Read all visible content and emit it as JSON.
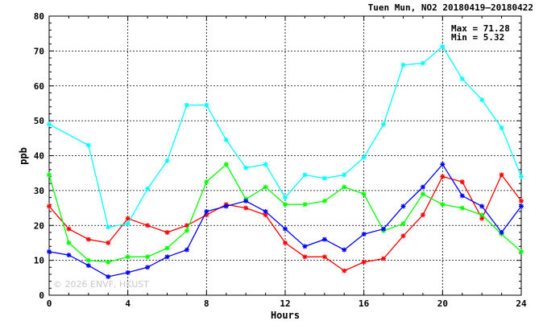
{
  "chart_data": {
    "type": "line",
    "title": "Tuen Mun, NO2 20180419—20180422",
    "xlabel": "Hours",
    "ylabel": "ppb",
    "xlim": [
      0,
      24
    ],
    "ylim": [
      0,
      80
    ],
    "x_ticks": [
      0,
      4,
      8,
      12,
      16,
      20,
      24
    ],
    "y_ticks": [
      0,
      10,
      20,
      30,
      40,
      50,
      60,
      70,
      80
    ],
    "grid": true,
    "stats": {
      "max_label": "Max = 71.28",
      "min_label": "Min =  5.32"
    },
    "watermark": "© 2026  ENVF, HKUST",
    "series": [
      {
        "color": "#ff0000",
        "x": [
          0,
          1,
          2,
          3,
          4,
          5,
          6,
          7,
          8,
          9,
          10,
          11,
          12,
          13,
          14,
          15,
          16,
          17,
          18,
          19,
          20,
          21,
          22,
          23,
          24
        ],
        "values": [
          25.5,
          19,
          16,
          15,
          22,
          20,
          18,
          20,
          23,
          26,
          25,
          23,
          15,
          11,
          11,
          7,
          9.5,
          10.5,
          17,
          23,
          34,
          32.5,
          22,
          34.5,
          27
        ]
      },
      {
        "color": "#00ff00",
        "x": [
          0,
          1,
          2,
          3,
          4,
          5,
          6,
          7,
          8,
          9,
          10,
          11,
          12,
          13,
          14,
          15,
          16,
          17,
          18,
          19,
          20,
          21,
          22,
          23,
          24
        ],
        "values": [
          34.5,
          15,
          10,
          9.5,
          11,
          11,
          13.5,
          18.5,
          32.5,
          37.5,
          27.5,
          31,
          26,
          26,
          27,
          31,
          29,
          18.5,
          20.5,
          29,
          26,
          25,
          23,
          17.5,
          12.5
        ]
      },
      {
        "color": "#0000ff",
        "x": [
          0,
          1,
          2,
          3,
          4,
          5,
          6,
          7,
          8,
          9,
          10,
          11,
          12,
          13,
          14,
          15,
          16,
          17,
          18,
          19,
          20,
          21,
          22,
          23,
          24
        ],
        "values": [
          12.5,
          11.5,
          8.5,
          5.3,
          6.5,
          8,
          11,
          13,
          24,
          25.5,
          27,
          24,
          19,
          14,
          16,
          13,
          17.5,
          19,
          25.5,
          31,
          37.5,
          28.5,
          25.5,
          18,
          25.5
        ]
      },
      {
        "color": "#00ffff",
        "x": [
          0,
          2,
          3,
          4,
          5,
          6,
          7,
          8,
          9,
          10,
          11,
          12,
          13,
          14,
          15,
          16,
          17,
          18,
          19,
          20,
          21,
          22,
          23,
          24
        ],
        "values": [
          49,
          43,
          19.5,
          20.5,
          30.5,
          38.5,
          54.5,
          54.5,
          44.5,
          36.5,
          37.5,
          28,
          34.5,
          33.5,
          34.5,
          39.5,
          49,
          66,
          66.5,
          71.28,
          62,
          56,
          48,
          34
        ]
      }
    ]
  }
}
